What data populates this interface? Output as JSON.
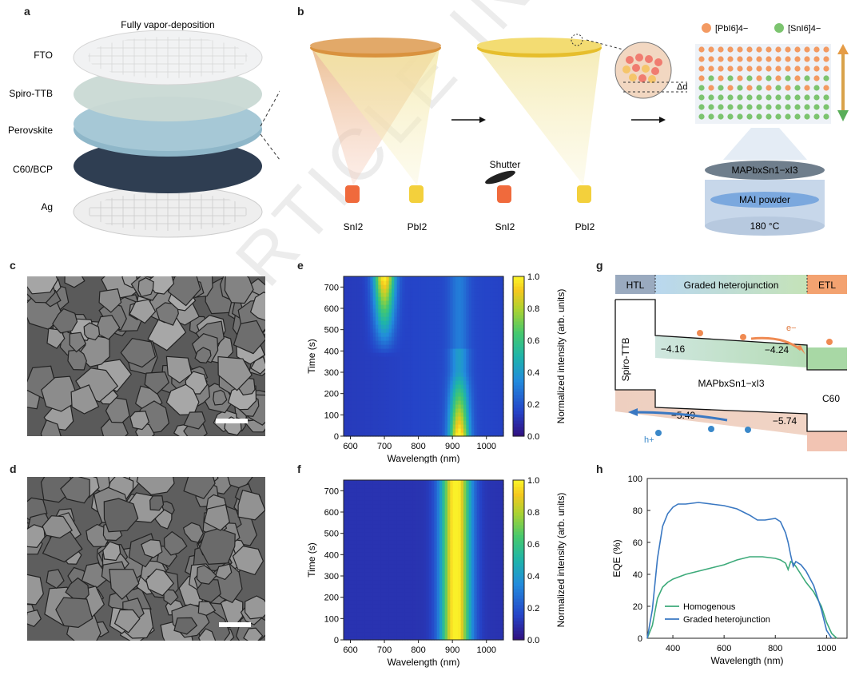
{
  "panel_labels": {
    "a": "a",
    "b": "b",
    "c": "c",
    "d": "d",
    "e": "e",
    "f": "f",
    "g": "g",
    "h": "h"
  },
  "panel_a": {
    "title": "Fully vapor-deposition",
    "layers": [
      "FTO",
      "Spiro-TTB",
      "Perovskite",
      "C60/BCP",
      "Ag"
    ],
    "layer_colors": [
      "#e8eaec",
      "#c9d9d4",
      "#8fb7c9",
      "#2f3e52",
      "#e5e5e5"
    ]
  },
  "panel_b": {
    "source1_left": "SnI2",
    "source2_left": "PbI2",
    "source1_right": "SnI2",
    "source2_right": "PbI2",
    "shutter": "Shutter",
    "delta_d": "Δd",
    "legend_pb": "[PbI6]4−",
    "legend_sn": "[SnI6]4−",
    "film": "MAPbxSn1−xI3",
    "powder": "MAI powder",
    "temperature": "180 °C"
  },
  "panel_e": {
    "chart_data": {
      "type": "heatmap",
      "xlabel": "Wavelength (nm)",
      "ylabel": "Time (s)",
      "colorbar_label": "Normalized intensity (arb. units)",
      "x_ticks": [
        600,
        700,
        800,
        900,
        1000
      ],
      "y_ticks": [
        0,
        100,
        200,
        300,
        400,
        500,
        600,
        700
      ],
      "colorbar_ticks": [
        "0.0",
        "0.2",
        "0.4",
        "0.6",
        "0.8",
        "1.0"
      ],
      "xlim": [
        580,
        1050
      ],
      "ylim": [
        0,
        750
      ]
    }
  },
  "panel_f": {
    "chart_data": {
      "type": "heatmap",
      "xlabel": "Wavelength (nm)",
      "ylabel": "Time (s)",
      "colorbar_label": "Normalized intensity (arb. units)",
      "x_ticks": [
        600,
        700,
        800,
        900,
        1000
      ],
      "y_ticks": [
        0,
        100,
        200,
        300,
        400,
        500,
        600,
        700
      ],
      "colorbar_ticks": [
        "0.0",
        "0.2",
        "0.4",
        "0.6",
        "0.8",
        "1.0"
      ],
      "xlim": [
        580,
        1050
      ],
      "ylim": [
        0,
        750
      ]
    }
  },
  "panel_g": {
    "htl": "HTL",
    "graded": "Graded heterojunction",
    "etl": "ETL",
    "spiro": "Spiro-TTB",
    "absorber": "MAPbxSn1−xI3",
    "c60": "C60",
    "cb_left": "−4.16",
    "cb_right": "−4.24",
    "vb_left": "−5.49",
    "vb_right": "−5.74",
    "electron": "e−",
    "hole": "h+"
  },
  "panel_h": {
    "chart_data": {
      "type": "line",
      "xlabel": "Wavelength (nm)",
      "ylabel": "EQE (%)",
      "xlim": [
        300,
        1080
      ],
      "ylim": [
        0,
        100
      ],
      "x_ticks": [
        400,
        600,
        800,
        1000
      ],
      "y_ticks": [
        0,
        20,
        40,
        60,
        80,
        100
      ],
      "series": [
        {
          "name": "Homogenous",
          "color": "#3daa7a",
          "x": [
            300,
            320,
            340,
            360,
            380,
            400,
            450,
            500,
            550,
            600,
            650,
            700,
            750,
            800,
            820,
            840,
            850,
            860,
            870,
            880,
            900,
            920,
            950,
            980,
            1000,
            1020,
            1040
          ],
          "y": [
            0,
            8,
            25,
            32,
            35,
            37,
            40,
            42,
            44,
            46,
            49,
            51,
            51,
            50,
            49,
            47,
            43,
            48,
            47,
            45,
            40,
            35,
            29,
            20,
            10,
            3,
            0
          ]
        },
        {
          "name": "Graded heterojunction",
          "color": "#3a78c2",
          "x": [
            300,
            320,
            340,
            360,
            380,
            400,
            420,
            450,
            500,
            550,
            600,
            650,
            700,
            730,
            760,
            800,
            820,
            840,
            850,
            860,
            870,
            880,
            900,
            920,
            950,
            980,
            1000,
            1020
          ],
          "y": [
            0,
            18,
            50,
            70,
            78,
            82,
            84,
            84,
            85,
            84,
            83,
            81,
            77,
            74,
            74,
            75,
            73,
            66,
            60,
            52,
            45,
            48,
            46,
            42,
            33,
            18,
            5,
            0
          ]
        }
      ]
    }
  }
}
